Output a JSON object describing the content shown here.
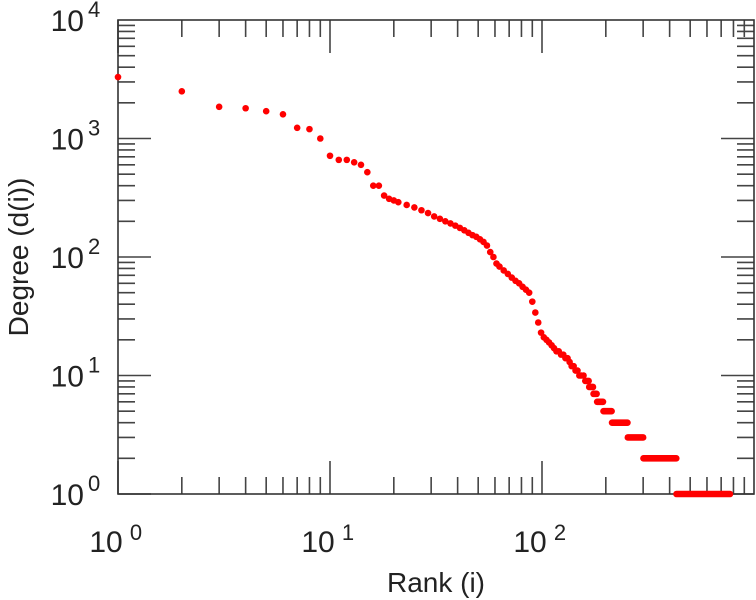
{
  "chart_data": {
    "type": "scatter",
    "title": "",
    "xlabel": "Rank (i)",
    "ylabel": "Degree (d(i))",
    "xscale": "log",
    "yscale": "log",
    "xlim": [
      1,
      1000
    ],
    "ylim": [
      1,
      10000
    ],
    "x_ticks": [
      {
        "base": "10",
        "exp": "0",
        "value": 1
      },
      {
        "base": "10",
        "exp": "1",
        "value": 10
      },
      {
        "base": "10",
        "exp": "2",
        "value": 100
      }
    ],
    "y_ticks": [
      {
        "base": "10",
        "exp": "0",
        "value": 1
      },
      {
        "base": "10",
        "exp": "1",
        "value": 10
      },
      {
        "base": "10",
        "exp": "2",
        "value": 100
      },
      {
        "base": "10",
        "exp": "3",
        "value": 1000
      },
      {
        "base": "10",
        "exp": "4",
        "value": 10000
      }
    ],
    "grid": false,
    "marker_color": "#ff0000",
    "points": [
      [
        1,
        3300
      ],
      [
        2,
        2500
      ],
      [
        3,
        1850
      ],
      [
        4,
        1800
      ],
      [
        5,
        1700
      ],
      [
        6,
        1600
      ],
      [
        7,
        1230
      ],
      [
        8,
        1200
      ],
      [
        9,
        1000
      ],
      [
        10,
        715
      ],
      [
        11,
        660
      ],
      [
        12,
        660
      ],
      [
        13,
        630
      ],
      [
        14,
        600
      ],
      [
        15,
        520
      ],
      [
        16,
        400
      ],
      [
        17,
        400
      ],
      [
        18,
        330
      ],
      [
        19,
        310
      ],
      [
        20,
        300
      ],
      [
        21,
        290
      ],
      [
        23,
        275
      ],
      [
        25,
        262
      ],
      [
        27,
        248
      ],
      [
        29,
        235
      ],
      [
        31,
        220
      ],
      [
        33,
        210
      ],
      [
        35,
        200
      ],
      [
        37,
        192
      ],
      [
        39,
        184
      ],
      [
        41,
        176
      ],
      [
        43,
        168
      ],
      [
        45,
        160
      ],
      [
        47,
        153
      ],
      [
        49,
        148
      ],
      [
        51,
        141
      ],
      [
        53,
        134
      ],
      [
        55,
        125
      ],
      [
        57,
        110
      ],
      [
        59,
        100
      ],
      [
        61,
        88
      ],
      [
        63,
        83
      ],
      [
        66,
        77
      ],
      [
        69,
        72
      ],
      [
        72,
        67
      ],
      [
        75,
        63
      ],
      [
        78,
        60
      ],
      [
        81,
        56
      ],
      [
        84,
        53
      ],
      [
        87,
        50
      ],
      [
        90,
        42
      ],
      [
        93,
        34
      ],
      [
        96,
        28
      ],
      [
        99,
        23
      ],
      [
        102,
        21
      ],
      [
        105,
        20
      ],
      [
        108,
        19
      ],
      [
        111,
        18
      ],
      [
        114,
        17
      ],
      [
        117,
        16
      ],
      [
        120,
        16
      ],
      [
        123,
        15
      ],
      [
        126,
        15
      ],
      [
        129,
        14
      ],
      [
        132,
        14
      ],
      [
        135,
        13
      ],
      [
        138,
        12
      ],
      [
        141,
        12
      ],
      [
        144,
        11
      ],
      [
        147,
        11
      ],
      [
        150,
        10
      ],
      [
        153,
        10
      ],
      [
        157,
        10
      ],
      [
        160,
        9
      ],
      [
        163,
        9
      ],
      [
        166,
        9
      ]
    ],
    "runs": [
      {
        "degree": 8,
        "rank_from": 167,
        "rank_to": 174
      },
      {
        "degree": 7,
        "rank_from": 175,
        "rank_to": 181
      },
      {
        "degree": 6,
        "rank_from": 182,
        "rank_to": 194
      },
      {
        "degree": 5,
        "rank_from": 195,
        "rank_to": 213
      },
      {
        "degree": 4,
        "rank_from": 214,
        "rank_to": 253
      },
      {
        "degree": 3,
        "rank_from": 254,
        "rank_to": 300
      },
      {
        "degree": 2,
        "rank_from": 301,
        "rank_to": 430
      },
      {
        "degree": 1,
        "rank_from": 431,
        "rank_to": 770
      }
    ]
  }
}
